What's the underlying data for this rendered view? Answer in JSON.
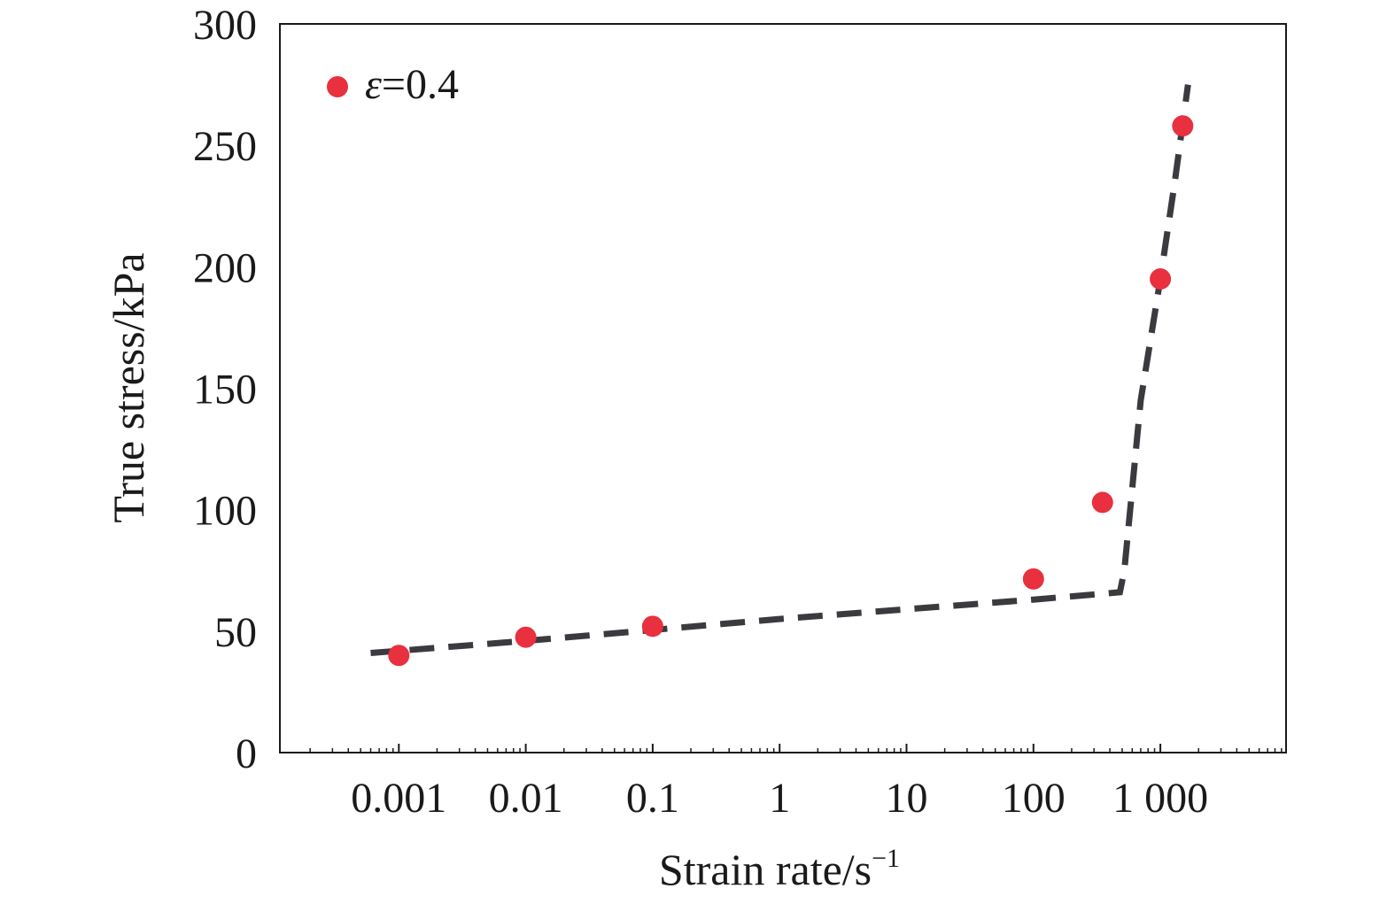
{
  "chart_data": {
    "type": "scatter",
    "xlabel": "Strain rate/s",
    "xlabel_sup": "−1",
    "ylabel": "True stress/kPa",
    "x_scale": "log",
    "xlim": [
      0.0001,
      10000
    ],
    "ylim": [
      0,
      300
    ],
    "x_tick_values": [
      0.001,
      0.01,
      0.1,
      1,
      10,
      100,
      1000
    ],
    "x_tick_labels": [
      "0.001",
      "0.01",
      "0.1",
      "1",
      "10",
      "100",
      "1 000"
    ],
    "y_tick_values": [
      0,
      50,
      100,
      150,
      200,
      250,
      300
    ],
    "y_tick_labels": [
      "0",
      "50",
      "100",
      "150",
      "200",
      "250",
      "300"
    ],
    "legend": {
      "position": "top-left",
      "entries": [
        {
          "symbol": "ε",
          "text": "=0.4",
          "color": "#e8303f"
        }
      ]
    },
    "series": [
      {
        "kind": "points",
        "color": "#e8303f",
        "x": [
          0.001,
          0.01,
          0.1,
          100,
          350,
          1000,
          1500
        ],
        "y": [
          40,
          47.5,
          52,
          71.5,
          103,
          195,
          258
        ]
      },
      {
        "kind": "dashed-fit",
        "color": "#3a3a3f",
        "x": [
          0.0006,
          0.01,
          0.1,
          1,
          10,
          100,
          480,
          520,
          700,
          1000,
          1300,
          1650
        ],
        "y": [
          41,
          46,
          50.5,
          55,
          59,
          63,
          66,
          75,
          145,
          195,
          235,
          275
        ]
      }
    ]
  }
}
